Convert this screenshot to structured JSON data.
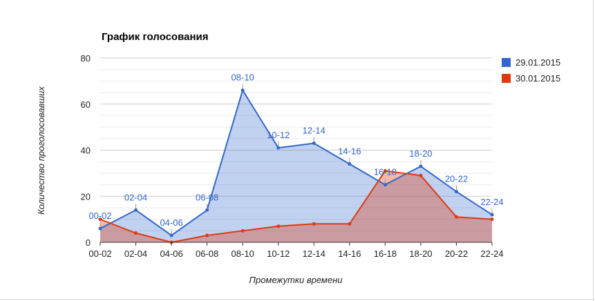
{
  "chart_data": {
    "type": "area",
    "title": "График голосования",
    "xlabel": "Промежутки времени",
    "ylabel": "Количество проголосовавших",
    "categories": [
      "00-02",
      "02-04",
      "04-06",
      "06-08",
      "08-10",
      "10-12",
      "12-14",
      "14-16",
      "16-18",
      "18-20",
      "20-22",
      "22-24"
    ],
    "ylim": [
      0,
      80
    ],
    "yticks": [
      "0",
      "20",
      "40",
      "60",
      "80"
    ],
    "grid": true,
    "legend_position": "right",
    "series": [
      {
        "name": "29.01.2015",
        "color": "#3366cc",
        "values": [
          6,
          14,
          3,
          14,
          66,
          41,
          43,
          34,
          25,
          33,
          22,
          12
        ]
      },
      {
        "name": "30.01.2015",
        "color": "#dc3912",
        "values": [
          10,
          4,
          0,
          3,
          5,
          7,
          8,
          8,
          31,
          29,
          11,
          10
        ]
      }
    ],
    "annotations": [
      "00-02",
      "02-04",
      "04-06",
      "06-08",
      "08-10",
      "10-12",
      "12-14",
      "14-16",
      "16-18",
      "18-20",
      "20-22",
      "22-24"
    ]
  }
}
